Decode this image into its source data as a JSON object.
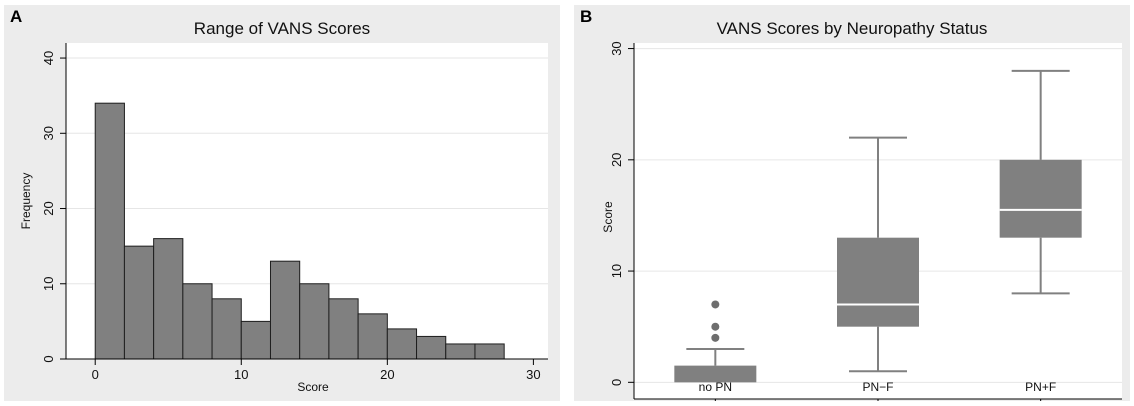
{
  "chart_data": [
    {
      "type": "bar",
      "panel": "A",
      "title": "Range of VANS Scores",
      "xlabel": "Score",
      "ylabel": "Frequency",
      "bin_width": 2,
      "bins_start": [
        0,
        2,
        4,
        6,
        8,
        10,
        12,
        14,
        16,
        18,
        20,
        22,
        24,
        26
      ],
      "values": [
        34,
        15,
        16,
        10,
        8,
        5,
        13,
        10,
        8,
        6,
        4,
        3,
        2,
        2
      ],
      "xlim": [
        -2,
        31
      ],
      "ylim": [
        0,
        42
      ],
      "xticks": [
        0,
        10,
        20,
        30
      ],
      "yticks": [
        0,
        10,
        20,
        30,
        40
      ],
      "grid": true,
      "bar_color": "#808080"
    },
    {
      "type": "box",
      "panel": "B",
      "title": "VANS Scores by Neuropathy Status",
      "xlabel": "",
      "ylabel": "Score",
      "categories": [
        "no PN",
        "PN−F",
        "PN+F"
      ],
      "boxes": [
        {
          "whisker_low": 0,
          "q1": 0,
          "median": 0,
          "q3": 1.5,
          "whisker_high": 3,
          "outliers": [
            4,
            5,
            7
          ]
        },
        {
          "whisker_low": 1,
          "q1": 5,
          "median": 7,
          "q3": 13,
          "whisker_high": 22,
          "outliers": []
        },
        {
          "whisker_low": 8,
          "q1": 13,
          "median": 15.5,
          "q3": 20,
          "whisker_high": 28,
          "outliers": []
        }
      ],
      "ylim": [
        -1.5,
        30.5
      ],
      "yticks": [
        0,
        10,
        20,
        30
      ],
      "grid": true,
      "box_color": "#808080",
      "median_color": "#ffffff"
    }
  ]
}
